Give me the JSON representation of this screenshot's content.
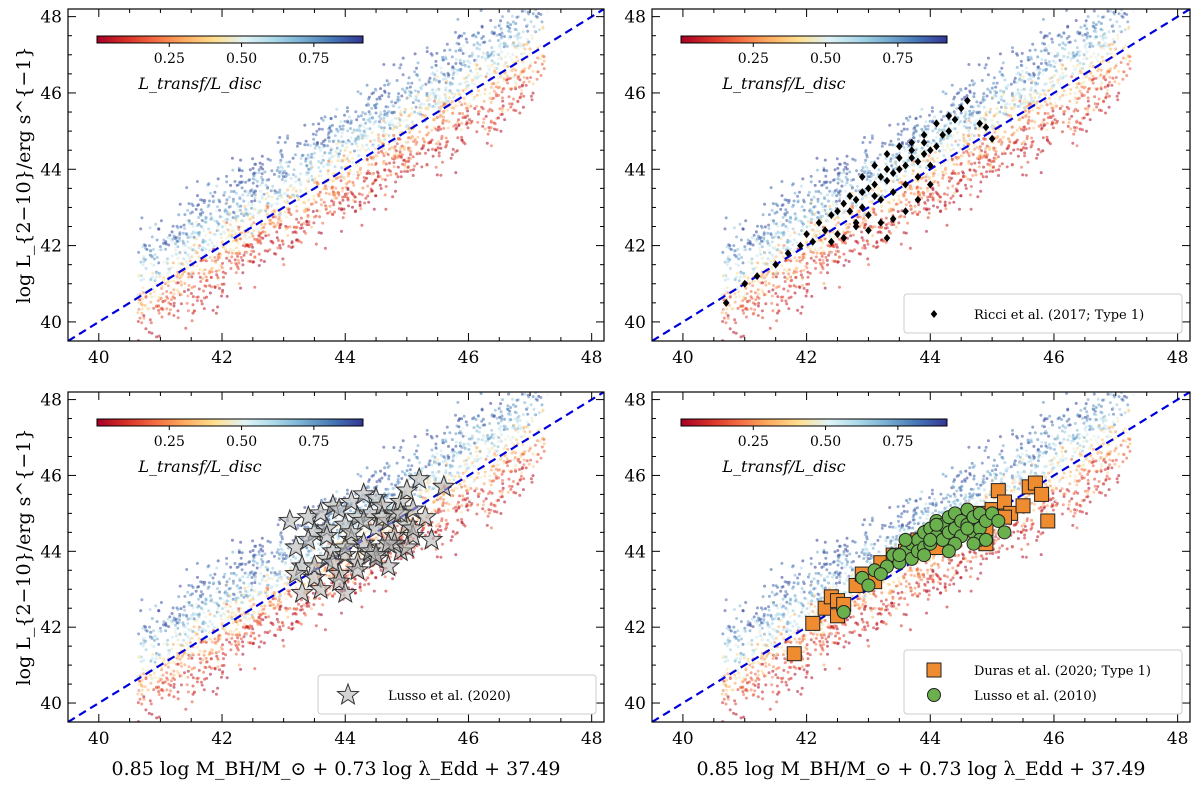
{
  "figure": {
    "xlabel": "0.85 log M_BH/M_⊙ + 0.73 log λ_Edd + 37.49",
    "ylabel": "log L_{2−10}/erg s^{−1}"
  },
  "colorbar": {
    "label": "L_transf/L_disc",
    "ticks": [
      "0.25",
      "0.50",
      "0.75"
    ],
    "range": [
      0.0,
      0.92
    ],
    "colormap": "RdYlBu",
    "colors": [
      "#a50026",
      "#d73027",
      "#f46d43",
      "#fdae61",
      "#fee090",
      "#e0f3f8",
      "#abd9e9",
      "#74add1",
      "#4575b4",
      "#313695"
    ]
  },
  "chart_data": [
    {
      "type": "scatter",
      "panel": "top-left",
      "xlim": [
        39.5,
        48.2
      ],
      "ylim": [
        39.5,
        48.2
      ],
      "xticks": [
        "40",
        "42",
        "44",
        "46",
        "48"
      ],
      "yticks": [
        "40",
        "42",
        "44",
        "46",
        "48"
      ],
      "one_to_one_line": {
        "x": [
          39.5,
          48.2
        ],
        "y": [
          39.5,
          48.2
        ],
        "color": "#0000dd",
        "style": "dashed"
      },
      "model_cloud": {
        "x_range": [
          40.6,
          47.3
        ],
        "scatter_y": [
          -1.4,
          1.9
        ],
        "color_by": "L_transf/L_disc"
      },
      "series": []
    },
    {
      "type": "scatter",
      "panel": "top-right",
      "xlim": [
        39.5,
        48.2
      ],
      "ylim": [
        39.5,
        48.2
      ],
      "xticks": [
        "40",
        "42",
        "44",
        "46",
        "48"
      ],
      "yticks": [
        "40",
        "42",
        "44",
        "46",
        "48"
      ],
      "one_to_one_line": {
        "x": [
          39.5,
          48.2
        ],
        "y": [
          39.5,
          48.2
        ],
        "color": "#0000dd",
        "style": "dashed"
      },
      "model_cloud": {
        "x_range": [
          40.6,
          47.3
        ],
        "scatter_y": [
          -1.4,
          1.9
        ],
        "color_by": "L_transf/L_disc"
      },
      "legend_position": "lower-right",
      "series": [
        {
          "name": "Ricci et al. (2017; Type 1)",
          "marker": "diamond",
          "color": "#000000",
          "x": [
            40.7,
            41.0,
            41.2,
            41.5,
            41.7,
            41.9,
            42.0,
            42.1,
            42.2,
            42.3,
            42.4,
            42.5,
            42.5,
            42.6,
            42.7,
            42.7,
            42.8,
            42.8,
            42.9,
            42.9,
            43.0,
            43.0,
            43.1,
            43.1,
            43.2,
            43.2,
            43.3,
            43.3,
            43.4,
            43.4,
            43.5,
            43.5,
            43.6,
            43.6,
            43.7,
            43.7,
            43.8,
            43.8,
            43.9,
            43.9,
            44.0,
            44.0,
            44.1,
            44.2,
            44.3,
            44.4,
            44.5,
            44.6,
            42.4,
            42.6,
            42.8,
            43.0,
            43.2,
            43.4,
            43.6,
            43.8,
            44.0,
            42.9,
            43.1,
            43.3,
            43.5,
            43.7,
            43.9,
            44.1,
            44.3,
            44.8,
            44.9,
            45.0,
            43.3
          ],
          "y": [
            40.5,
            41.0,
            41.2,
            41.5,
            41.8,
            42.0,
            42.3,
            42.1,
            42.6,
            42.4,
            42.8,
            42.9,
            42.3,
            43.1,
            42.9,
            43.3,
            43.2,
            42.6,
            43.4,
            43.0,
            43.5,
            42.8,
            43.6,
            43.3,
            43.8,
            43.2,
            43.7,
            44.0,
            43.9,
            43.4,
            44.0,
            44.3,
            44.1,
            43.6,
            44.3,
            44.5,
            44.2,
            43.8,
            44.4,
            44.7,
            44.5,
            44.1,
            44.6,
            44.9,
            45.0,
            45.3,
            45.6,
            45.8,
            42.1,
            42.2,
            42.5,
            42.4,
            42.6,
            42.7,
            42.9,
            43.2,
            43.6,
            43.8,
            44.1,
            44.4,
            44.6,
            44.7,
            44.9,
            45.2,
            45.4,
            45.2,
            45.1,
            44.8,
            42.2
          ]
        }
      ]
    },
    {
      "type": "scatter",
      "panel": "bottom-left",
      "xlim": [
        39.5,
        48.2
      ],
      "ylim": [
        39.5,
        48.2
      ],
      "xticks": [
        "40",
        "42",
        "44",
        "46",
        "48"
      ],
      "yticks": [
        "40",
        "42",
        "44",
        "46",
        "48"
      ],
      "one_to_one_line": {
        "x": [
          39.5,
          48.2
        ],
        "y": [
          39.5,
          48.2
        ],
        "color": "#0000dd",
        "style": "dashed"
      },
      "model_cloud": {
        "x_range": [
          40.6,
          47.3
        ],
        "scatter_y": [
          -1.4,
          1.9
        ],
        "color_by": "L_transf/L_disc"
      },
      "legend_position": "lower-right",
      "series": [
        {
          "name": "Lusso et al. (2020)",
          "marker": "star",
          "color": "#a0a0a0",
          "x": [
            43.1,
            43.2,
            43.3,
            43.4,
            43.5,
            43.5,
            43.6,
            43.7,
            43.7,
            43.8,
            43.8,
            43.9,
            43.9,
            44.0,
            44.0,
            44.1,
            44.1,
            44.2,
            44.2,
            44.3,
            44.3,
            44.4,
            44.4,
            44.5,
            44.5,
            44.6,
            44.6,
            44.7,
            44.7,
            44.8,
            44.8,
            44.9,
            44.9,
            45.0,
            45.0,
            45.1,
            45.1,
            45.2,
            45.3,
            45.4,
            45.6,
            43.3,
            43.6,
            43.9,
            44.2,
            44.5,
            44.8,
            45.1,
            43.4,
            43.7,
            44.0,
            44.3,
            44.6,
            44.9,
            43.5,
            43.8,
            44.1,
            44.4,
            44.7,
            45.0,
            43.2,
            44.0,
            44.5
          ],
          "y": [
            44.8,
            44.1,
            43.6,
            44.9,
            43.3,
            44.5,
            45.0,
            43.8,
            44.6,
            45.2,
            44.0,
            43.4,
            45.1,
            44.7,
            43.9,
            45.3,
            44.3,
            43.7,
            44.9,
            45.5,
            44.2,
            45.0,
            43.9,
            45.4,
            44.6,
            44.1,
            45.2,
            44.8,
            43.6,
            45.0,
            44.4,
            45.3,
            44.0,
            44.7,
            45.6,
            44.4,
            45.1,
            45.9,
            44.9,
            44.3,
            45.7,
            42.9,
            43.0,
            43.2,
            43.5,
            43.8,
            44.2,
            44.6,
            44.3,
            44.4,
            44.1,
            44.8,
            44.9,
            45.0,
            43.6,
            43.7,
            44.5,
            44.0,
            44.2,
            44.1,
            43.4,
            42.9,
            43.9
          ]
        }
      ]
    },
    {
      "type": "scatter",
      "panel": "bottom-right",
      "xlim": [
        39.5,
        48.2
      ],
      "ylim": [
        39.5,
        48.2
      ],
      "xticks": [
        "40",
        "42",
        "44",
        "46",
        "48"
      ],
      "yticks": [
        "40",
        "42",
        "44",
        "46",
        "48"
      ],
      "one_to_one_line": {
        "x": [
          39.5,
          48.2
        ],
        "y": [
          39.5,
          48.2
        ],
        "color": "#0000dd",
        "style": "dashed"
      },
      "model_cloud": {
        "x_range": [
          40.6,
          47.3
        ],
        "scatter_y": [
          -1.4,
          1.9
        ],
        "color_by": "L_transf/L_disc"
      },
      "legend_position": "lower-right",
      "series": [
        {
          "name": "Duras et al. (2020; Type 1)",
          "marker": "square",
          "color": "#f08c30",
          "x": [
            41.8,
            42.1,
            42.3,
            42.4,
            42.5,
            42.5,
            42.6,
            42.8,
            42.9,
            43.1,
            43.2,
            43.4,
            43.6,
            43.8,
            44.0,
            44.2,
            44.4,
            44.6,
            44.8,
            44.9,
            45.0,
            45.1,
            45.2,
            45.3,
            45.5,
            45.6,
            45.7,
            45.8,
            45.9,
            44.1,
            44.3,
            44.7,
            44.9,
            45.2,
            43.9
          ],
          "y": [
            41.3,
            42.1,
            42.5,
            42.8,
            42.3,
            42.7,
            42.6,
            43.1,
            43.4,
            43.2,
            43.7,
            43.9,
            44.0,
            44.3,
            44.5,
            44.4,
            44.6,
            44.8,
            45.0,
            44.6,
            45.1,
            45.6,
            45.3,
            45.0,
            45.2,
            45.7,
            45.8,
            45.5,
            44.8,
            44.1,
            44.4,
            44.7,
            44.2,
            44.9,
            44.3
          ]
        },
        {
          "name": "Lusso et al. (2010)",
          "marker": "circle",
          "color": "#6ab04c",
          "x": [
            42.9,
            43.1,
            43.3,
            43.4,
            43.5,
            43.6,
            43.7,
            43.7,
            43.8,
            43.8,
            43.9,
            43.9,
            44.0,
            44.0,
            44.1,
            44.1,
            44.2,
            44.2,
            44.3,
            44.3,
            44.4,
            44.4,
            44.5,
            44.5,
            44.6,
            44.6,
            44.7,
            44.7,
            44.8,
            44.8,
            44.9,
            45.0,
            45.1,
            43.6,
            44.0,
            44.4,
            44.8,
            43.9,
            44.3,
            44.7,
            43.5,
            44.1,
            44.6,
            42.6,
            43.2,
            43.0,
            44.9,
            45.2
          ],
          "y": [
            43.3,
            43.5,
            43.6,
            43.9,
            43.7,
            44.0,
            44.2,
            43.8,
            44.3,
            44.0,
            44.5,
            44.1,
            44.2,
            44.6,
            44.4,
            44.8,
            44.7,
            44.3,
            44.5,
            44.9,
            44.6,
            45.0,
            44.4,
            44.8,
            44.7,
            45.1,
            44.5,
            44.9,
            44.6,
            45.0,
            44.8,
            45.0,
            44.8,
            44.3,
            44.3,
            44.2,
            44.3,
            43.9,
            44.0,
            44.2,
            43.9,
            44.7,
            44.6,
            42.4,
            43.4,
            43.1,
            44.3,
            44.5
          ]
        }
      ]
    }
  ]
}
